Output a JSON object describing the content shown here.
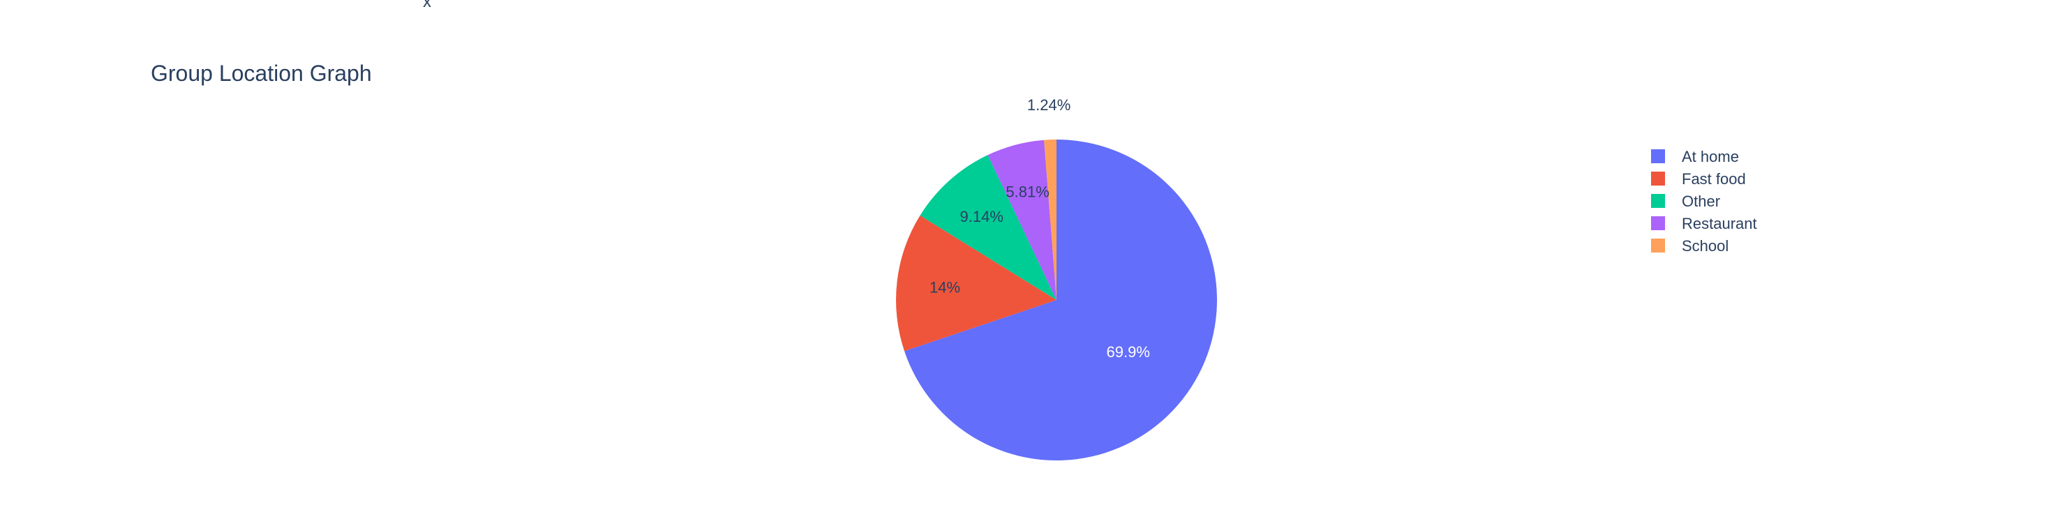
{
  "stray_label": "x",
  "chart_data": {
    "type": "pie",
    "title": "Group Location Graph",
    "categories": [
      "At home",
      "Fast food",
      "Other",
      "Restaurant",
      "School"
    ],
    "values": [
      69.9,
      14,
      9.14,
      5.81,
      1.24
    ],
    "labels": [
      "69.9%",
      "14%",
      "9.14%",
      "5.81%",
      "1.24%"
    ],
    "colors": [
      "#636efa",
      "#EF553B",
      "#00cc96",
      "#ab63fa",
      "#FFA15A"
    ],
    "legend": {
      "position": "right",
      "entries": [
        "At home",
        "Fast food",
        "Other",
        "Restaurant",
        "School"
      ]
    },
    "direction": "clockwise",
    "rotation_start": "top"
  }
}
